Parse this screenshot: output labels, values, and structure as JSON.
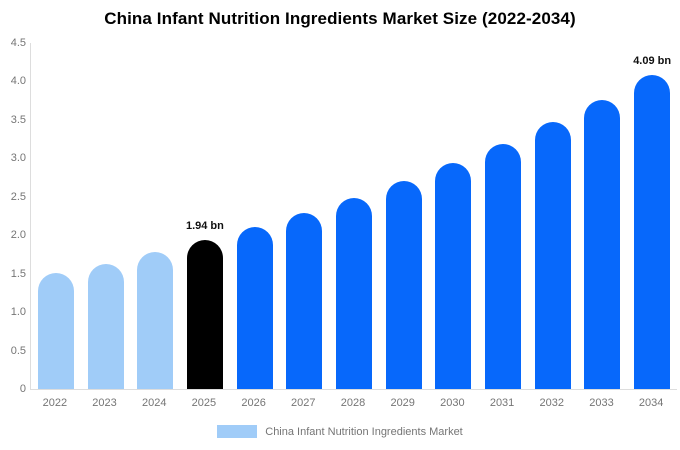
{
  "title": "China Infant Nutrition Ingredients Market Size (2022-2034)",
  "colors": {
    "historical_bar": "#A0CCF8",
    "current_year_bar": "#000000",
    "forecast_bar": "#0768FB",
    "axis_line": "#DDDDDD",
    "tick_text": "#757575",
    "value_label_text": "#111111",
    "background": "#FFFFFF"
  },
  "chart_data": {
    "type": "bar",
    "title": "China Infant Nutrition Ingredients Market Size (2022-2034)",
    "xlabel": "",
    "ylabel": "",
    "categories": [
      "2022",
      "2023",
      "2024",
      "2025",
      "2026",
      "2027",
      "2028",
      "2029",
      "2030",
      "2031",
      "2032",
      "2033",
      "2034"
    ],
    "values": [
      1.51,
      1.62,
      1.78,
      1.94,
      2.11,
      2.29,
      2.49,
      2.7,
      2.94,
      3.19,
      3.47,
      3.76,
      4.09
    ],
    "bar_colors": [
      "#A0CCF8",
      "#A0CCF8",
      "#A0CCF8",
      "#000000",
      "#0768FB",
      "#0768FB",
      "#0768FB",
      "#0768FB",
      "#0768FB",
      "#0768FB",
      "#0768FB",
      "#0768FB",
      "#0768FB"
    ],
    "data_labels": [
      {
        "category": "2025",
        "text": "1.94 bn"
      },
      {
        "category": "2034",
        "text": "4.09 bn"
      }
    ],
    "ylim": [
      0,
      4.5
    ],
    "yticks": [
      {
        "value": 0,
        "label": "0"
      },
      {
        "value": 0.5,
        "label": "0.5"
      },
      {
        "value": 1.0,
        "label": "1.0"
      },
      {
        "value": 1.5,
        "label": "1.5"
      },
      {
        "value": 2.0,
        "label": "2.0"
      },
      {
        "value": 2.5,
        "label": "2.5"
      },
      {
        "value": 3.0,
        "label": "3.0"
      },
      {
        "value": 3.5,
        "label": "3.5"
      },
      {
        "value": 4.0,
        "label": "4.0"
      },
      {
        "value": 4.5,
        "label": "4.5"
      }
    ],
    "grid": false,
    "legend_position": "bottom",
    "legend": {
      "label": "China Infant Nutrition Ingredients Market",
      "swatch_color": "#A0CCF8"
    }
  }
}
